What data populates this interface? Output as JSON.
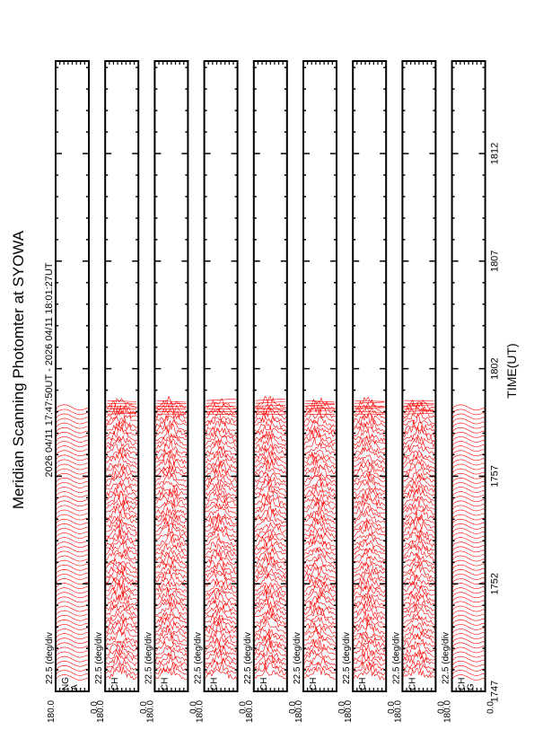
{
  "title": "Meridian Scanning Photomter at SYOWA",
  "time_range_label": "2026 04/11 17:47:50UT - 2026 04/11 18:01:27UT",
  "x_axis_label": "TIME(UT)",
  "colors": {
    "trace": "#ff0000",
    "axis": "#000000"
  },
  "chart_data": {
    "type": "line",
    "title": "Meridian Scanning Photomter at SYOWA",
    "xlabel": "TIME(UT)",
    "x_ticks": [
      "1747",
      "1752",
      "1757",
      "1802",
      "1807",
      "1812"
    ],
    "x_tick_minutes": [
      0,
      5,
      10,
      15,
      20,
      25
    ],
    "xlim_minutes": [
      0,
      29.3
    ],
    "data_end_minutes": 13.6,
    "y_tick_labels": [
      "0.0",
      "180.0"
    ],
    "scale_label": "22.5 (deg/div",
    "panels": [
      {
        "label": "NG",
        "sublabel": "A",
        "style": "regular"
      },
      {
        "label": "CH",
        "sublabel": "",
        "style": "variable"
      },
      {
        "label": "CH",
        "sublabel": "",
        "style": "variable"
      },
      {
        "label": "CH",
        "sublabel": "",
        "style": "variable"
      },
      {
        "label": "CH",
        "sublabel": "",
        "style": "variable"
      },
      {
        "label": "CH",
        "sublabel": "",
        "style": "variable"
      },
      {
        "label": "CH",
        "sublabel": "",
        "style": "variable"
      },
      {
        "label": "CH",
        "sublabel": "",
        "style": "variable"
      },
      {
        "label": "CH",
        "sublabel": "G",
        "style": "regular"
      }
    ]
  }
}
